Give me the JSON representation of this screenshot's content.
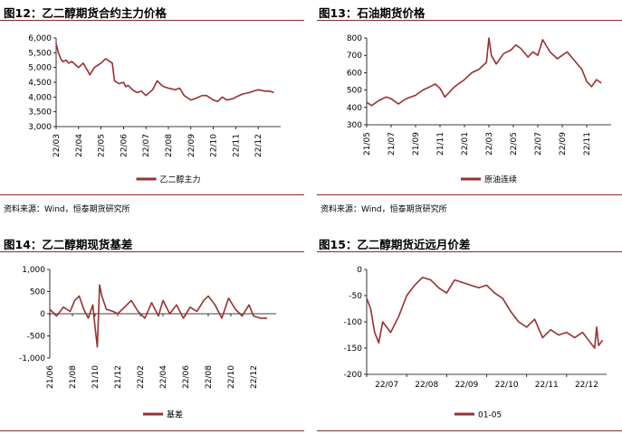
{
  "colors": {
    "series": "#9b2f2f",
    "rule": "#8a2a2a",
    "axis": "#000000"
  },
  "source_note": "资料来源：Wind，恒泰期货研究所",
  "chart_data": [
    {
      "title": "图12：乙二醇期货合约主力价格",
      "type": "line",
      "xlabel": "",
      "ylabel": "",
      "x_ticks": [
        "22/03",
        "22/04",
        "22/05",
        "22/06",
        "22/07",
        "22/08",
        "22/09",
        "22/10",
        "22/11",
        "22/12"
      ],
      "y_ticks": [
        "3,000",
        "3,500",
        "4,000",
        "4,500",
        "5,000",
        "5,500",
        "6,000"
      ],
      "ylim": [
        3000,
        6000
      ],
      "legend": "bottom",
      "series": [
        {
          "name": "乙二醇主力",
          "x": [
            0,
            0.1,
            0.2,
            0.3,
            0.45,
            0.55,
            0.7,
            0.85,
            1.0,
            1.2,
            1.4,
            1.5,
            1.7,
            1.9,
            2.0,
            2.2,
            2.5,
            2.6,
            2.8,
            3.0,
            3.1,
            3.2,
            3.4,
            3.5,
            3.6,
            3.8,
            4.0,
            4.3,
            4.5,
            4.7,
            4.8,
            5.0,
            5.3,
            5.5,
            5.7,
            5.9,
            6.0,
            6.2,
            6.5,
            6.7,
            7.0,
            7.2,
            7.4,
            7.6,
            7.9,
            8.0,
            8.3,
            8.6,
            8.8,
            9.0,
            9.3,
            9.5,
            9.7
          ],
          "values": [
            5800,
            5500,
            5300,
            5200,
            5250,
            5150,
            5200,
            5100,
            5000,
            5150,
            4900,
            4750,
            5000,
            5100,
            5150,
            5300,
            5150,
            4550,
            4450,
            4500,
            4350,
            4400,
            4250,
            4200,
            4150,
            4200,
            4050,
            4250,
            4550,
            4400,
            4350,
            4300,
            4250,
            4300,
            4050,
            3950,
            3900,
            3950,
            4050,
            4050,
            3900,
            3850,
            4000,
            3900,
            3950,
            4000,
            4100,
            4150,
            4200,
            4250,
            4200,
            4200,
            4150
          ]
        }
      ]
    },
    {
      "title": "图13：石油期货价格",
      "type": "line",
      "xlabel": "",
      "ylabel": "",
      "x_ticks": [
        "21/05",
        "21/07",
        "21/09",
        "21/11",
        "22/01",
        "22/03",
        "22/05",
        "22/07",
        "22/09",
        "22/11"
      ],
      "y_ticks": [
        "300",
        "400",
        "500",
        "600",
        "700",
        "800"
      ],
      "ylim": [
        300,
        800
      ],
      "legend": "bottom",
      "series": [
        {
          "name": "原油连续",
          "x": [
            0,
            0.2,
            0.5,
            0.8,
            1.0,
            1.3,
            1.5,
            1.7,
            2.0,
            2.3,
            2.6,
            2.8,
            3.0,
            3.2,
            3.4,
            3.6,
            3.8,
            4.0,
            4.3,
            4.6,
            4.9,
            5.0,
            5.1,
            5.3,
            5.6,
            5.9,
            6.1,
            6.3,
            6.6,
            6.8,
            7.0,
            7.2,
            7.5,
            7.8,
            8.0,
            8.2,
            8.5,
            8.8,
            9.0,
            9.2,
            9.4,
            9.6
          ],
          "values": [
            430,
            410,
            440,
            460,
            450,
            420,
            440,
            455,
            470,
            500,
            520,
            535,
            510,
            460,
            490,
            520,
            540,
            560,
            600,
            620,
            660,
            800,
            700,
            650,
            710,
            730,
            760,
            740,
            690,
            720,
            700,
            790,
            720,
            680,
            700,
            720,
            670,
            620,
            550,
            520,
            560,
            540
          ]
        }
      ]
    },
    {
      "title": "图14：乙二醇期现货基差",
      "type": "line",
      "xlabel": "",
      "ylabel": "",
      "x_ticks": [
        "21/06",
        "21/08",
        "21/10",
        "21/12",
        "22/02",
        "22/04",
        "22/06",
        "22/08",
        "22/10",
        "22/12"
      ],
      "y_ticks": [
        "-1,000",
        "-500",
        "0",
        "500",
        "1,000"
      ],
      "ylim": [
        -1000,
        1000
      ],
      "legend": "bottom",
      "series": [
        {
          "name": "基差",
          "x": [
            0,
            0.3,
            0.6,
            0.9,
            1.1,
            1.3,
            1.5,
            1.7,
            1.9,
            2.0,
            2.1,
            2.2,
            2.3,
            2.5,
            2.8,
            3.0,
            3.3,
            3.6,
            3.9,
            4.2,
            4.5,
            4.8,
            5.0,
            5.3,
            5.6,
            5.9,
            6.2,
            6.5,
            6.8,
            7.0,
            7.3,
            7.6,
            7.9,
            8.2,
            8.5,
            8.8,
            9.0,
            9.3,
            9.6
          ],
          "values": [
            100,
            -50,
            150,
            50,
            300,
            400,
            100,
            -100,
            200,
            -300,
            -750,
            650,
            400,
            100,
            50,
            0,
            150,
            300,
            50,
            -100,
            250,
            -50,
            300,
            0,
            200,
            -100,
            150,
            50,
            300,
            400,
            200,
            -100,
            350,
            100,
            -50,
            200,
            -50,
            -100,
            -100
          ]
        }
      ]
    },
    {
      "title": "图15：乙二醇期货近远月价差",
      "type": "line",
      "xlabel": "",
      "ylabel": "",
      "x_ticks": [
        "22/07",
        "22/08",
        "22/09",
        "22/10",
        "22/11",
        "22/12"
      ],
      "y_ticks": [
        "0",
        "-50",
        "-100",
        "-150",
        "-200"
      ],
      "ylim": [
        -200,
        0
      ],
      "legend": "bottom",
      "series": [
        {
          "name": "01-05",
          "x": [
            0,
            0.1,
            0.2,
            0.3,
            0.4,
            0.6,
            0.8,
            1.0,
            1.2,
            1.4,
            1.6,
            1.8,
            2.0,
            2.2,
            2.4,
            2.6,
            2.8,
            3.0,
            3.2,
            3.4,
            3.6,
            3.8,
            4.0,
            4.2,
            4.4,
            4.6,
            4.8,
            5.0,
            5.2,
            5.4,
            5.6,
            5.7,
            5.75,
            5.8,
            5.9
          ],
          "values": [
            -55,
            -75,
            -120,
            -140,
            -100,
            -120,
            -90,
            -50,
            -30,
            -15,
            -20,
            -35,
            -45,
            -20,
            -25,
            -30,
            -35,
            -30,
            -45,
            -55,
            -80,
            -100,
            -110,
            -95,
            -130,
            -115,
            -125,
            -120,
            -130,
            -120,
            -140,
            -150,
            -110,
            -145,
            -135
          ]
        }
      ]
    }
  ]
}
